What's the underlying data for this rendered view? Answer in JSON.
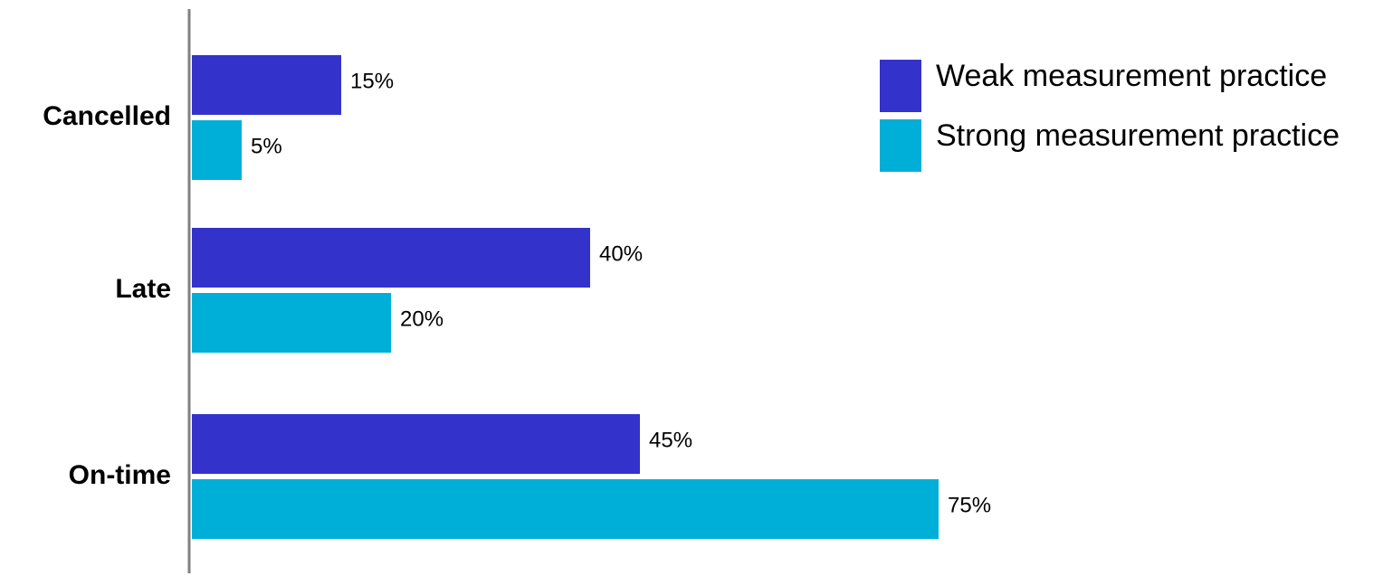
{
  "chart_data": {
    "type": "bar",
    "orientation": "horizontal",
    "categories": [
      "Cancelled",
      "Late",
      "On-time"
    ],
    "series": [
      {
        "name": "Weak measurement practice",
        "values": [
          15,
          40,
          45
        ],
        "color": "#3333CC"
      },
      {
        "name": "Strong measurement practice",
        "values": [
          5,
          20,
          75
        ],
        "color": "#00AFD8"
      }
    ],
    "value_suffix": "%",
    "xlim": [
      0,
      75
    ],
    "title": "",
    "xlabel": "",
    "ylabel": "",
    "grid": false,
    "legend_position": "top-right",
    "axis_color": "#808080"
  }
}
